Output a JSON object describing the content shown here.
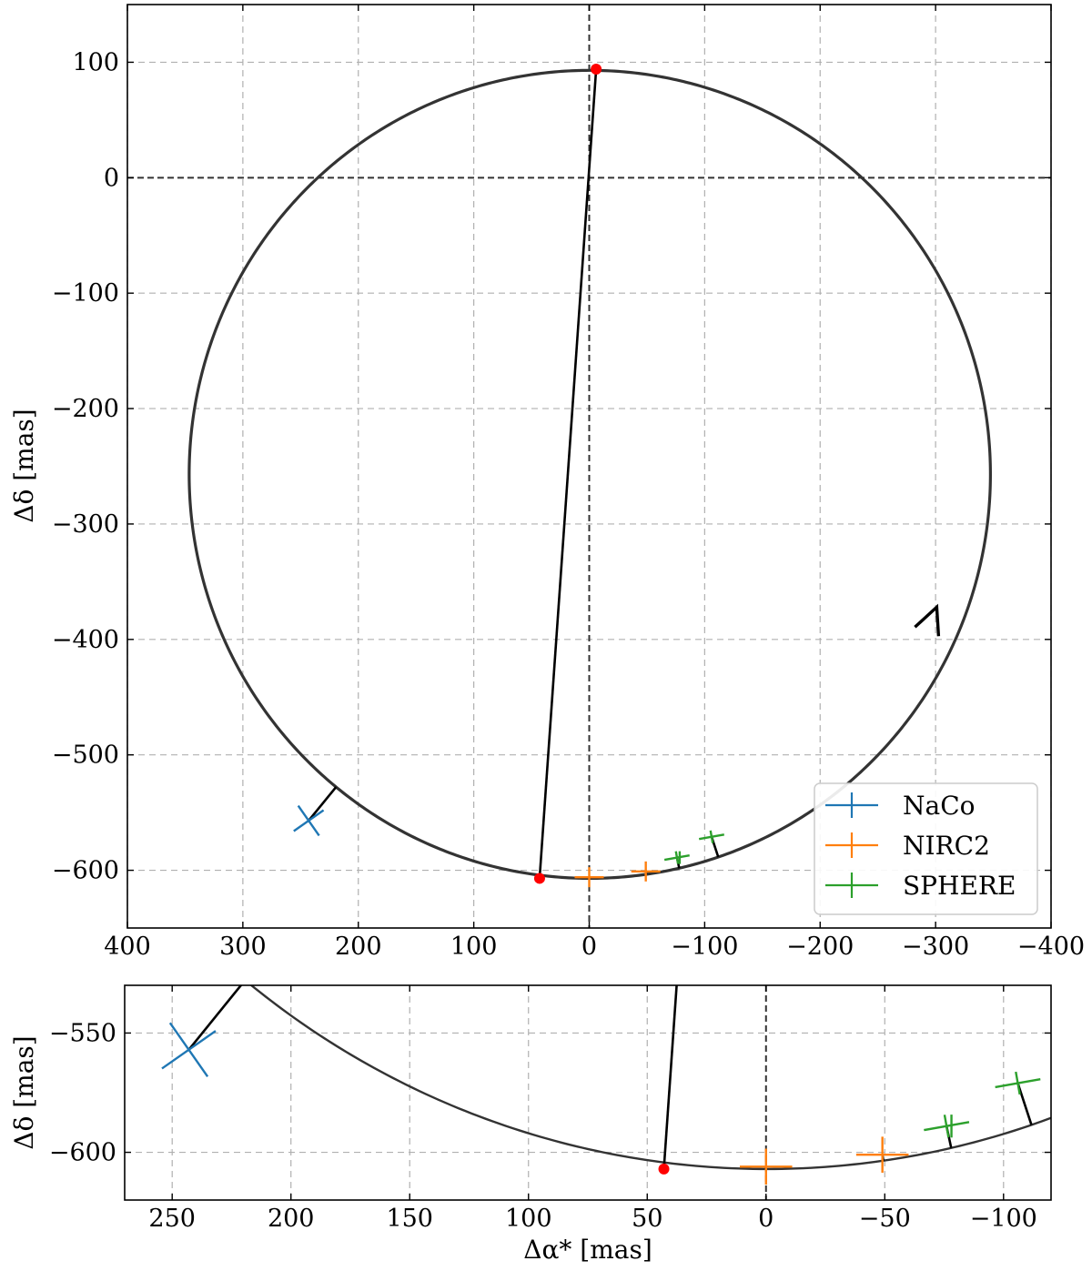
{
  "chart_data": [
    {
      "type": "scatter",
      "panel": "main",
      "xlabel": "",
      "ylabel": "Δδ [mas]",
      "xlim": [
        400,
        -400
      ],
      "ylim": [
        -650,
        150
      ],
      "x_ticks": [
        400,
        300,
        200,
        100,
        0,
        -100,
        -200,
        -300,
        -400
      ],
      "y_ticks": [
        100,
        0,
        -100,
        -200,
        -300,
        -400,
        -500,
        -600
      ],
      "grid": true,
      "legend_position": "lower-right",
      "orbit": {
        "center": [
          -0.5,
          -257
        ],
        "semi_x": 347,
        "semi_y": 350,
        "color": "#333333",
        "direction_arrow_at": [
          -301,
          -372
        ]
      },
      "line_of_nodes": [
        [
          -6,
          94
        ],
        [
          43,
          -607
        ]
      ],
      "red_points": [
        [
          -6,
          94
        ],
        [
          43,
          -607
        ]
      ],
      "series": [
        {
          "name": "NaCo",
          "color": "#1f77b4",
          "points": [
            [
              243,
              -557
            ]
          ]
        },
        {
          "name": "NIRC2",
          "color": "#ff7f0e",
          "points": [
            [
              0,
              -606
            ],
            [
              -49,
              -601
            ]
          ]
        },
        {
          "name": "SPHERE",
          "color": "#2ca02c",
          "points": [
            [
              -76,
              -589
            ],
            [
              -106,
              -571
            ]
          ]
        }
      ]
    },
    {
      "type": "scatter",
      "panel": "zoom",
      "xlabel": "Δα* [mas]",
      "ylabel": "Δδ [mas]",
      "xlim": [
        270,
        -120
      ],
      "ylim": [
        -620,
        -530
      ],
      "x_ticks": [
        250,
        200,
        150,
        100,
        50,
        0,
        -50,
        -100
      ],
      "y_ticks": [
        -550,
        -600
      ],
      "grid": true
    }
  ],
  "legend": [
    {
      "label": "NaCo",
      "color": "#1f77b4"
    },
    {
      "label": "NIRC2",
      "color": "#ff7f0e"
    },
    {
      "label": "SPHERE",
      "color": "#2ca02c"
    }
  ]
}
